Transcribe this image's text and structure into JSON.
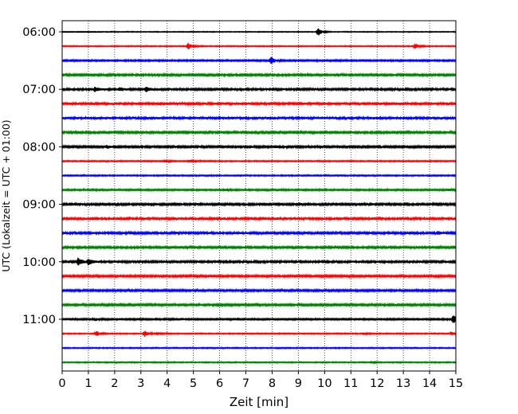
{
  "chart_data": {
    "type": "line",
    "title": "",
    "xlabel": "Zeit  [min]",
    "ylabel": "UTC (Lokalzeit = UTC + 01:00)",
    "xlim": [
      0,
      15
    ],
    "x_ticks": [
      "0",
      "1",
      "2",
      "3",
      "4",
      "5",
      "6",
      "7",
      "8",
      "9",
      "10",
      "11",
      "12",
      "13",
      "14",
      "15"
    ],
    "y_tick_labels": [
      "06:00",
      "07:00",
      "08:00",
      "09:00",
      "10:00",
      "11:00"
    ],
    "grid": "vertical dotted",
    "trace_interval_minutes": 15,
    "colors": [
      "#000000",
      "#ff0000",
      "#0000ff",
      "#008000"
    ],
    "traces": [
      {
        "label": "06:00",
        "color": "#000000",
        "amp": 0.15,
        "events": [
          {
            "t": 9.75,
            "amp": 1.7
          }
        ]
      },
      {
        "label": "06:15",
        "color": "#ff0000",
        "amp": 0.18,
        "events": [
          {
            "t": 4.8,
            "amp": 1.2
          },
          {
            "t": 13.45,
            "amp": 1.0
          }
        ]
      },
      {
        "label": "06:30",
        "color": "#0000ff",
        "amp": 0.28,
        "events": [
          {
            "t": 7.95,
            "amp": 1.4
          }
        ]
      },
      {
        "label": "06:45",
        "color": "#008000",
        "amp": 0.38,
        "events": []
      },
      {
        "label": "07:00",
        "color": "#000000",
        "amp": 0.4,
        "events": [
          {
            "t": 1.25,
            "amp": 0.8
          },
          {
            "t": 2.2,
            "amp": 0.5
          },
          {
            "t": 3.2,
            "amp": 0.8
          }
        ]
      },
      {
        "label": "07:15",
        "color": "#ff0000",
        "amp": 0.42,
        "events": []
      },
      {
        "label": "07:30",
        "color": "#0000ff",
        "amp": 0.44,
        "events": []
      },
      {
        "label": "07:45",
        "color": "#008000",
        "amp": 0.38,
        "events": []
      },
      {
        "label": "08:00",
        "color": "#000000",
        "amp": 0.36,
        "events": [
          {
            "t": 1.7,
            "amp": 0.5
          },
          {
            "t": 8.1,
            "amp": 0.45
          }
        ]
      },
      {
        "label": "08:15",
        "color": "#ff0000",
        "amp": 0.22,
        "events": [
          {
            "t": 3.95,
            "amp": 0.45
          },
          {
            "t": 4.85,
            "amp": 0.4
          }
        ]
      },
      {
        "label": "08:30",
        "color": "#0000ff",
        "amp": 0.22,
        "events": []
      },
      {
        "label": "08:45",
        "color": "#008000",
        "amp": 0.28,
        "events": [
          {
            "t": 6.2,
            "amp": 0.35
          },
          {
            "t": 14.7,
            "amp": 0.45
          }
        ]
      },
      {
        "label": "09:00",
        "color": "#000000",
        "amp": 0.38,
        "events": [
          {
            "t": 0.3,
            "amp": 0.5
          }
        ]
      },
      {
        "label": "09:15",
        "color": "#ff0000",
        "amp": 0.42,
        "events": []
      },
      {
        "label": "09:30",
        "color": "#0000ff",
        "amp": 0.4,
        "events": [
          {
            "t": 14.3,
            "amp": 0.45
          }
        ]
      },
      {
        "label": "09:45",
        "color": "#008000",
        "amp": 0.38,
        "events": []
      },
      {
        "label": "10:00",
        "color": "#000000",
        "amp": 0.4,
        "events": [
          {
            "t": 0.6,
            "amp": 1.35
          },
          {
            "t": 1.0,
            "amp": 1.1
          }
        ]
      },
      {
        "label": "10:15",
        "color": "#ff0000",
        "amp": 0.36,
        "events": []
      },
      {
        "label": "10:30",
        "color": "#0000ff",
        "amp": 0.34,
        "events": []
      },
      {
        "label": "10:45",
        "color": "#008000",
        "amp": 0.36,
        "events": []
      },
      {
        "label": "11:00",
        "color": "#000000",
        "amp": 0.28,
        "events": [
          {
            "t": 1.3,
            "amp": 0.4
          },
          {
            "t": 14.9,
            "amp": 1.6
          }
        ]
      },
      {
        "label": "11:15",
        "color": "#ff0000",
        "amp": 0.2,
        "events": [
          {
            "t": 1.3,
            "amp": 1.0
          },
          {
            "t": 3.15,
            "amp": 1.2
          },
          {
            "t": 3.65,
            "amp": 0.5
          },
          {
            "t": 11.5,
            "amp": 0.4
          },
          {
            "t": 14.85,
            "amp": 0.5
          }
        ]
      },
      {
        "label": "11:30",
        "color": "#0000ff",
        "amp": 0.2,
        "events": []
      },
      {
        "label": "11:45",
        "color": "#008000",
        "amp": 0.2,
        "events": [
          {
            "t": 11.8,
            "amp": 0.3
          }
        ]
      }
    ]
  }
}
